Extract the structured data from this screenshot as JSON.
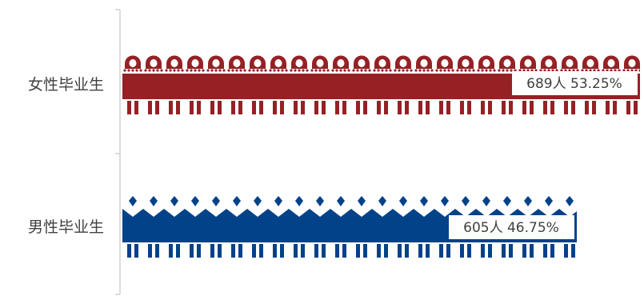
{
  "chart_data": {
    "type": "bar",
    "orientation": "horizontal",
    "style": "pictograph",
    "categories": [
      "女性毕业生",
      "男性毕业生"
    ],
    "series": [
      {
        "values": [
          689,
          605
        ],
        "percents": [
          "53.25%",
          "46.75%"
        ],
        "data_labels": [
          "689人  53.25%",
          "605人  46.75%"
        ]
      }
    ],
    "colors": [
      "#962125",
      "#024289"
    ],
    "xlim": [
      0,
      689
    ],
    "grid": false,
    "legend": "none"
  }
}
